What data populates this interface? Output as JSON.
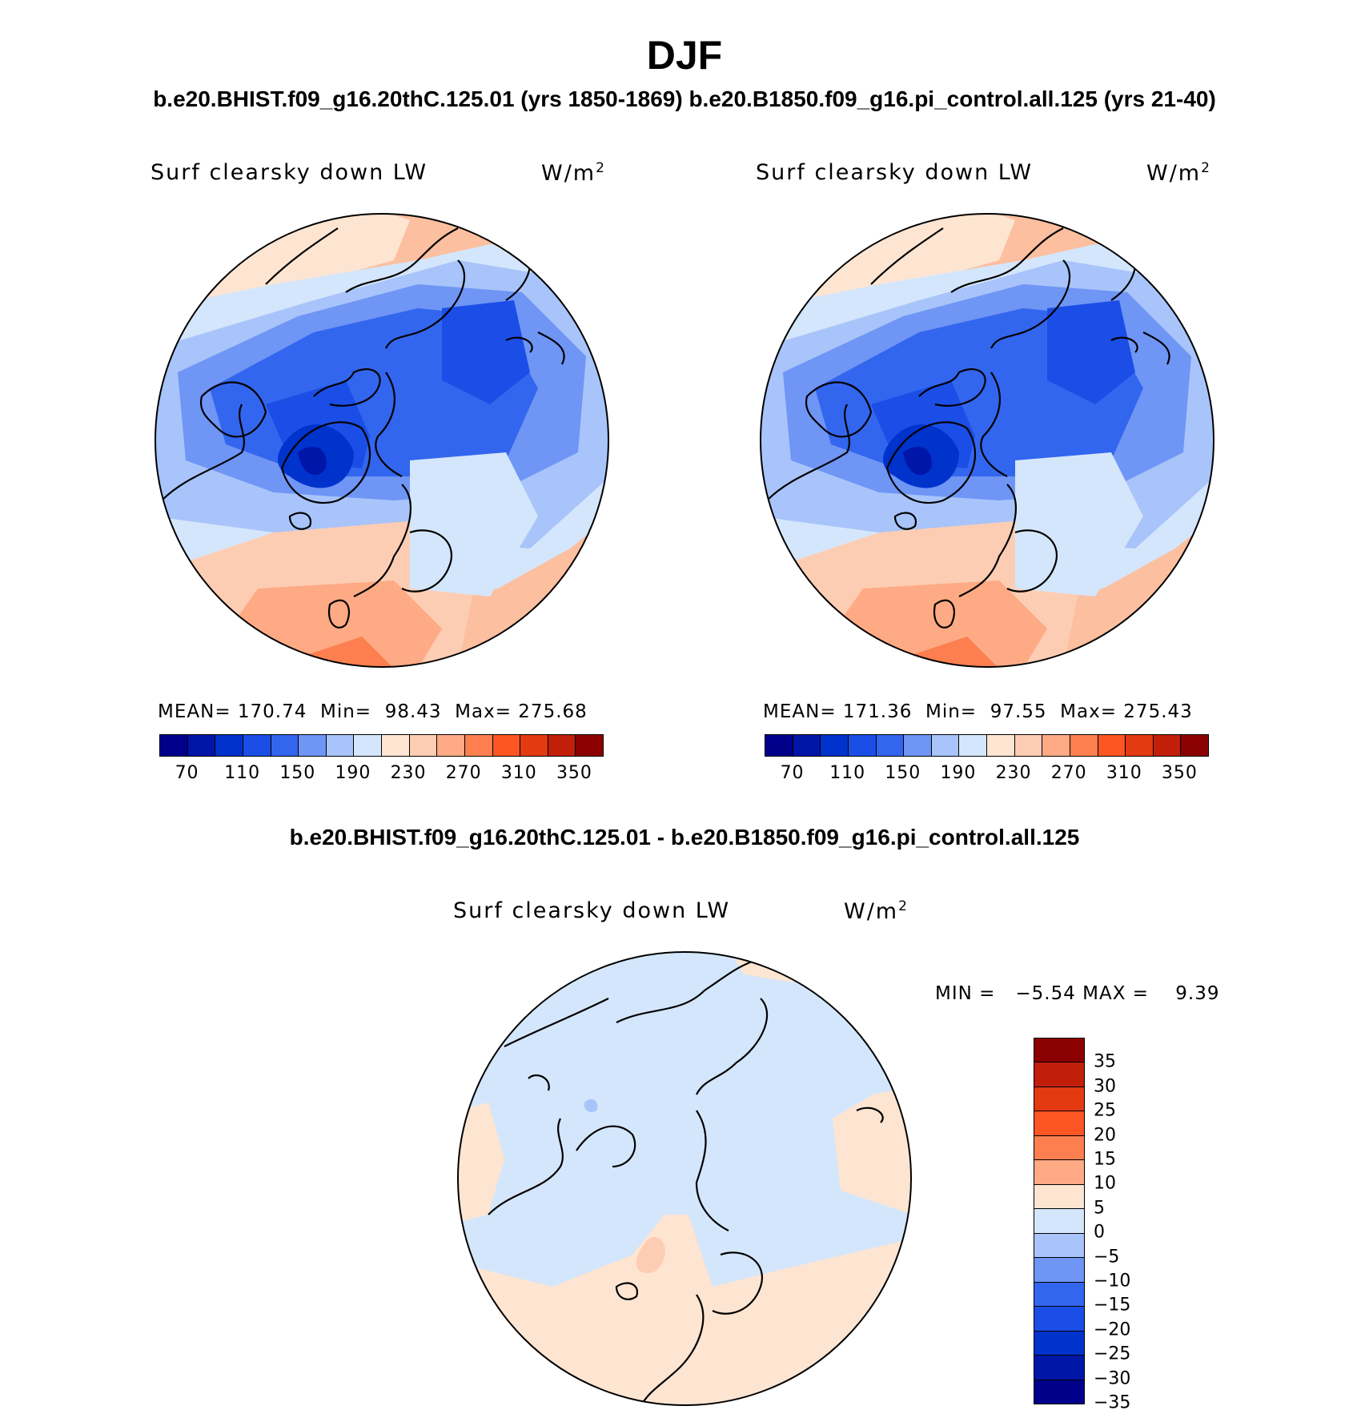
{
  "title": "DJF",
  "top_subtitle": "b.e20.BHIST.f09_g16.20thC.125.01 (yrs 1850-1869)  b.e20.B1850.f09_g16.pi_control.all.125 (yrs 21-40)",
  "diff_subtitle": "b.e20.BHIST.f09_g16.20thC.125.01 - b.e20.B1850.f09_g16.pi_control.all.125",
  "panels": [
    {
      "variable": "Surf clearsky down LW",
      "units_base": "W/m",
      "units_exp": "2",
      "stats_text": "MEAN= 170.74  Min=  98.43  Max= 275.68"
    },
    {
      "variable": "Surf clearsky down LW",
      "units_base": "W/m",
      "units_exp": "2",
      "stats_text": "MEAN= 171.36  Min=  97.55  Max= 275.43"
    },
    {
      "variable": "Surf clearsky down LW",
      "units_base": "W/m",
      "units_exp": "2",
      "stats_text": "MIN =   −5.54 MAX =    9.39"
    }
  ],
  "abs_colorbar": {
    "colors": [
      "#00008b",
      "#0016a8",
      "#0033cc",
      "#1a4ee6",
      "#3366ee",
      "#6f95f5",
      "#a8c4fa",
      "#d4e6fb",
      "#fde5d2",
      "#fdcdb3",
      "#fdaa85",
      "#fd7f4f",
      "#fb5623",
      "#e43a12",
      "#c11f0a",
      "#8b0000"
    ],
    "labels": [
      "70",
      "110",
      "150",
      "190",
      "230",
      "270",
      "310",
      "350"
    ]
  },
  "diff_colorbar": {
    "colors": [
      "#8b0000",
      "#c11f0a",
      "#e43a12",
      "#fb5623",
      "#fd7f4f",
      "#fdaa85",
      "#fde5d2",
      "#d4e6fb",
      "#a8c4fa",
      "#6f95f5",
      "#3366ee",
      "#1a4ee6",
      "#0033cc",
      "#0016a8",
      "#00008b"
    ],
    "labels": [
      "35",
      "30",
      "25",
      "20",
      "15",
      "10",
      "5",
      "0",
      "−5",
      "−10",
      "−15",
      "−20",
      "−25",
      "−30",
      "−35"
    ]
  }
}
